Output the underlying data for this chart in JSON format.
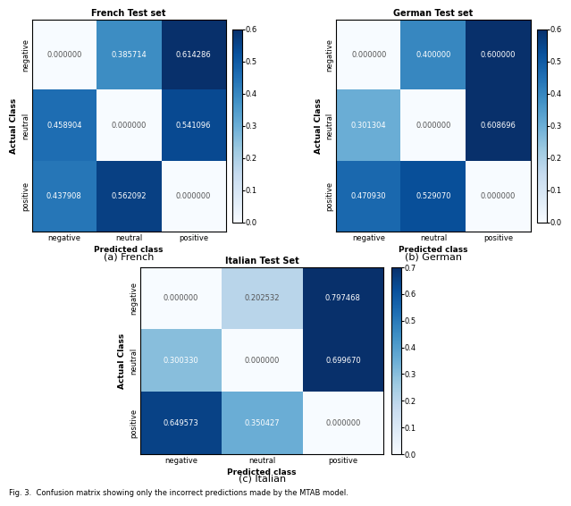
{
  "french": {
    "title": "French Test set",
    "matrix": [
      [
        0.0,
        0.385714,
        0.614286
      ],
      [
        0.458904,
        0.0,
        0.541096
      ],
      [
        0.437908,
        0.562092,
        0.0
      ]
    ],
    "vmin": 0.0,
    "vmax": 0.6,
    "colorbar_ticks": [
      0.0,
      0.1,
      0.2,
      0.3,
      0.4,
      0.5,
      0.6
    ],
    "subtitle": "(a) French"
  },
  "german": {
    "title": "German Test set",
    "matrix": [
      [
        0.0,
        0.4,
        0.6
      ],
      [
        0.301304,
        0.0,
        0.608696
      ],
      [
        0.47093,
        0.52907,
        0.0
      ]
    ],
    "vmin": 0.0,
    "vmax": 0.6,
    "colorbar_ticks": [
      0.0,
      0.1,
      0.2,
      0.3,
      0.4,
      0.5,
      0.6
    ],
    "subtitle": "(b) German"
  },
  "italian": {
    "title": "Italian Test Set",
    "matrix": [
      [
        0.0,
        0.202532,
        0.797468
      ],
      [
        0.30033,
        0.0,
        0.69967
      ],
      [
        0.649573,
        0.350427,
        0.0
      ]
    ],
    "vmin": 0.0,
    "vmax": 0.7,
    "colorbar_ticks": [
      0.0,
      0.1,
      0.2,
      0.3,
      0.4,
      0.5,
      0.6,
      0.7
    ],
    "subtitle": "(c) Italian"
  },
  "classes": [
    "negative",
    "neutral",
    "positive"
  ],
  "xlabel": "Predicted class",
  "ylabel": "Actual Class",
  "cmap": "Blues",
  "figure_caption": "Fig. 3.  Confusion matrix showing only the incorrect predictions made by the MTAB model.",
  "text_color_threshold": 0.35,
  "cell_fontsize": 6,
  "title_fontsize": 7,
  "label_fontsize": 6.5,
  "tick_fontsize": 6,
  "subtitle_fontsize": 8,
  "caption_fontsize": 6
}
